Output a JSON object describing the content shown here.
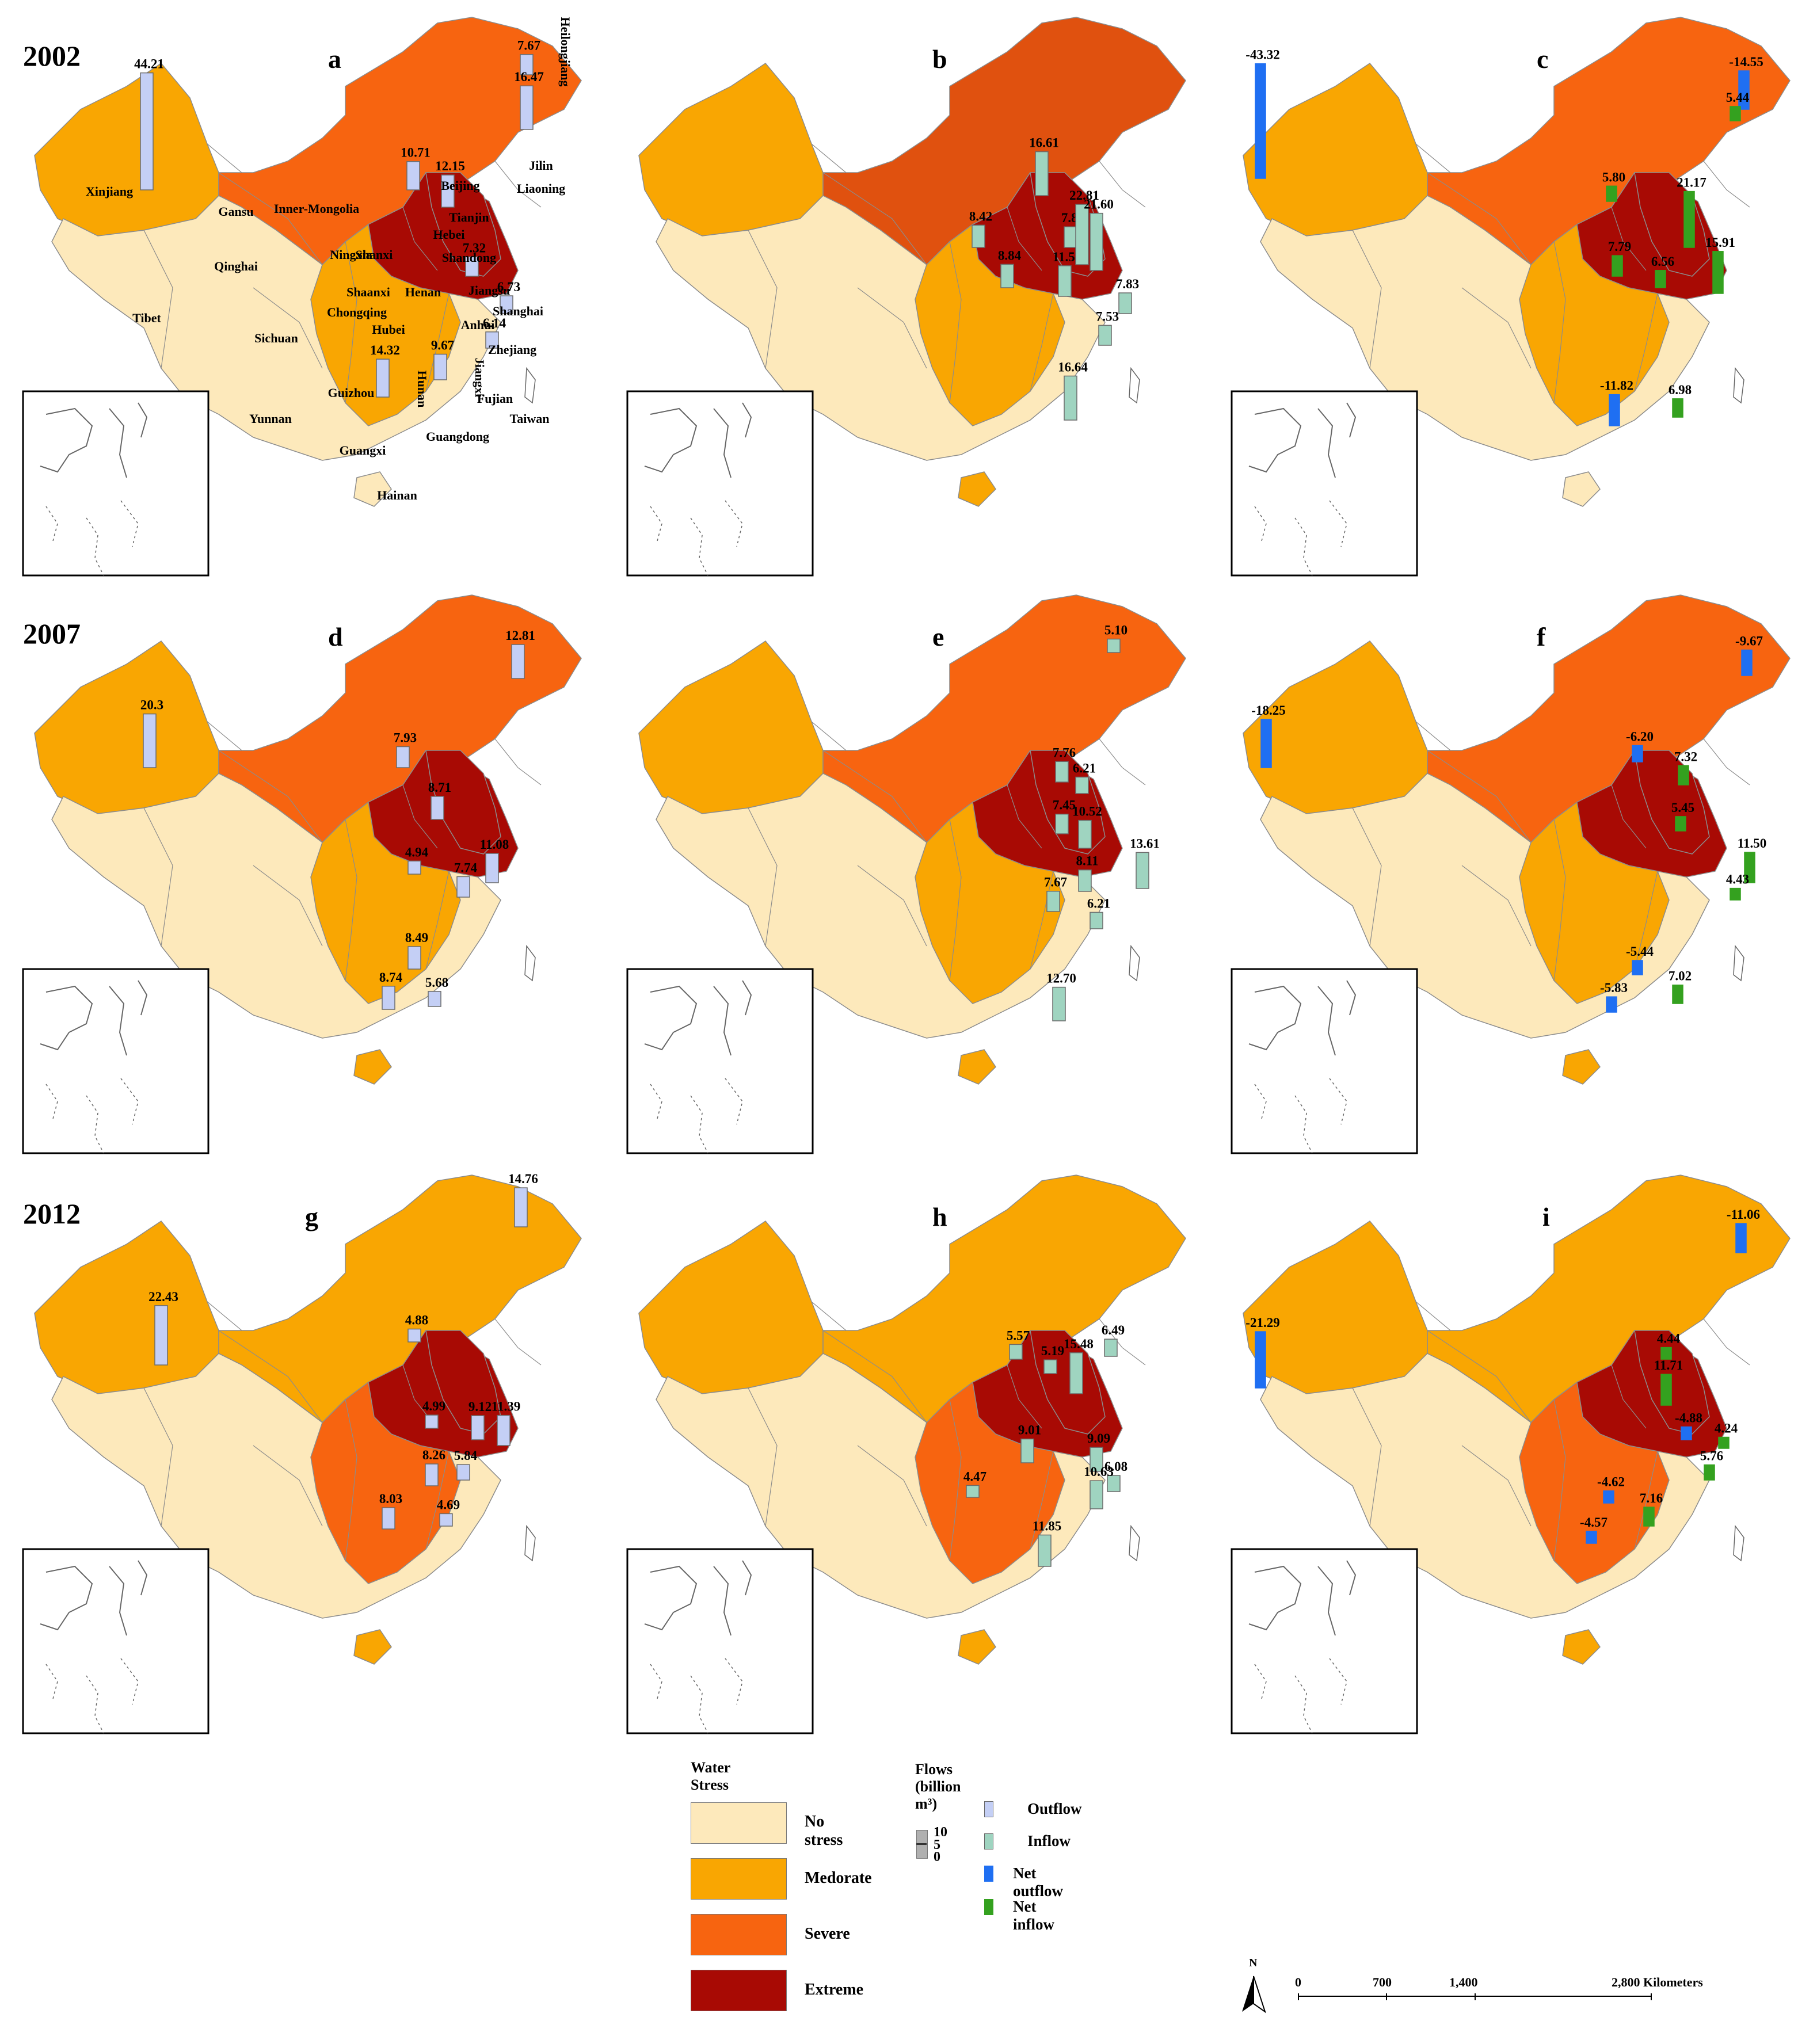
{
  "years": [
    "2002",
    "2007",
    "2012"
  ],
  "panel_letters": [
    "a",
    "b",
    "c",
    "d",
    "e",
    "f",
    "g",
    "h",
    "i"
  ],
  "colors": {
    "no_stress": "#fde9bb",
    "moderate": "#f9a602",
    "severe": "#f76410",
    "severe_2002b": "#e0510f",
    "extreme": "#a80a04",
    "outflow": "#c4cff5",
    "inflow": "#9fd4c0",
    "net_outflow": "#1f6ff2",
    "net_inflow": "#34a11f",
    "border": "#8c8c8c"
  },
  "province_labels": [
    "Heilongjiang",
    "Jilin",
    "Liaoning",
    "Beijing",
    "Tianjin",
    "Hebei",
    "Shandong",
    "Jiangsu",
    "Shanghai",
    "Zhejiang",
    "Fujian",
    "Taiwan",
    "Guangdong",
    "Hainan",
    "Guangxi",
    "Jiangxi",
    "Hunan",
    "Guizhou",
    "Yunnan",
    "Chongqing",
    "Sichuan",
    "Hubei",
    "Anhui",
    "Henan",
    "Shaanxi",
    "Shanxi",
    "Ningxia",
    "Gansu",
    "Inner-Mongolia",
    "Qinghai",
    "Xinjiang",
    "Tibet"
  ],
  "panels": [
    {
      "id": "a",
      "flows": [
        {
          "label": "44.21",
          "type": "outflow",
          "value": 44.21
        },
        {
          "label": "10.71",
          "type": "outflow",
          "value": 10.71
        },
        {
          "label": "12.15",
          "type": "outflow",
          "value": 12.15
        },
        {
          "label": "7.67",
          "type": "outflow",
          "value": 7.67
        },
        {
          "label": "16.47",
          "type": "outflow",
          "value": 16.47
        },
        {
          "label": "7.32",
          "type": "outflow",
          "value": 7.32
        },
        {
          "label": "6.73",
          "type": "outflow",
          "value": 6.73
        },
        {
          "label": "6.14",
          "type": "outflow",
          "value": 6.14
        },
        {
          "label": "14.32",
          "type": "outflow",
          "value": 14.32
        },
        {
          "label": "9.67",
          "type": "outflow",
          "value": 9.67
        }
      ]
    },
    {
      "id": "b",
      "flows": [
        {
          "label": "16.61",
          "type": "inflow",
          "value": 16.61
        },
        {
          "label": "8.42",
          "type": "inflow",
          "value": 8.42
        },
        {
          "label": "8.84",
          "type": "inflow",
          "value": 8.84
        },
        {
          "label": "11.56",
          "type": "inflow",
          "value": 11.56
        },
        {
          "label": "7.80",
          "type": "inflow",
          "value": 7.8
        },
        {
          "label": "22.81",
          "type": "inflow",
          "value": 22.81
        },
        {
          "label": "21.60",
          "type": "inflow",
          "value": 21.6
        },
        {
          "label": "7.83",
          "type": "inflow",
          "value": 7.83
        },
        {
          "label": "7.53",
          "type": "inflow",
          "value": 7.53
        },
        {
          "label": "16.64",
          "type": "inflow",
          "value": 16.64
        }
      ]
    },
    {
      "id": "c",
      "flows": [
        {
          "label": "-43.32",
          "type": "net_outflow",
          "value": -43.32
        },
        {
          "label": "-14.55",
          "type": "net_outflow",
          "value": -14.55
        },
        {
          "label": "5.44",
          "type": "net_inflow",
          "value": 5.44
        },
        {
          "label": "5.80",
          "type": "net_inflow",
          "value": 5.8
        },
        {
          "label": "21.17",
          "type": "net_inflow",
          "value": 21.17
        },
        {
          "label": "7.79",
          "type": "net_inflow",
          "value": 7.79
        },
        {
          "label": "6.56",
          "type": "net_inflow",
          "value": 6.56
        },
        {
          "label": "15.91",
          "type": "net_inflow",
          "value": 15.91
        },
        {
          "label": "-11.82",
          "type": "net_outflow",
          "value": -11.82
        },
        {
          "label": "6.98",
          "type": "net_inflow",
          "value": 6.98
        }
      ]
    },
    {
      "id": "d",
      "flows": [
        {
          "label": "20.3",
          "type": "outflow",
          "value": 20.3
        },
        {
          "label": "12.81",
          "type": "outflow",
          "value": 12.81
        },
        {
          "label": "7.93",
          "type": "outflow",
          "value": 7.93
        },
        {
          "label": "8.71",
          "type": "outflow",
          "value": 8.71
        },
        {
          "label": "4.94",
          "type": "outflow",
          "value": 4.94
        },
        {
          "label": "7.74",
          "type": "outflow",
          "value": 7.74
        },
        {
          "label": "11.08",
          "type": "outflow",
          "value": 11.08
        },
        {
          "label": "8.49",
          "type": "outflow",
          "value": 8.49
        },
        {
          "label": "8.74",
          "type": "outflow",
          "value": 8.74
        },
        {
          "label": "5.68",
          "type": "outflow",
          "value": 5.68
        }
      ]
    },
    {
      "id": "e",
      "flows": [
        {
          "label": "5.10",
          "type": "inflow",
          "value": 5.1
        },
        {
          "label": "7.76",
          "type": "inflow",
          "value": 7.76
        },
        {
          "label": "6.21",
          "type": "inflow",
          "value": 6.21
        },
        {
          "label": "7.45",
          "type": "inflow",
          "value": 7.45
        },
        {
          "label": "10.52",
          "type": "inflow",
          "value": 10.52
        },
        {
          "label": "13.61",
          "type": "inflow",
          "value": 13.61
        },
        {
          "label": "7.67",
          "type": "inflow",
          "value": 7.67
        },
        {
          "label": "8.11",
          "type": "inflow",
          "value": 8.11
        },
        {
          "label": "6.21",
          "type": "inflow",
          "value": 6.21
        },
        {
          "label": "12.70",
          "type": "inflow",
          "value": 12.7
        }
      ]
    },
    {
      "id": "f",
      "flows": [
        {
          "label": "-18.25",
          "type": "net_outflow",
          "value": -18.25
        },
        {
          "label": "-9.67",
          "type": "net_outflow",
          "value": -9.67
        },
        {
          "label": "-6.20",
          "type": "net_outflow",
          "value": -6.2
        },
        {
          "label": "7.32",
          "type": "net_inflow",
          "value": 7.32
        },
        {
          "label": "5.45",
          "type": "net_inflow",
          "value": 5.45
        },
        {
          "label": "11.50",
          "type": "net_inflow",
          "value": 11.5
        },
        {
          "label": "4.43",
          "type": "net_inflow",
          "value": 4.43
        },
        {
          "label": "-5.44",
          "type": "net_outflow",
          "value": -5.44
        },
        {
          "label": "-5.83",
          "type": "net_outflow",
          "value": -5.83
        },
        {
          "label": "7.02",
          "type": "net_inflow",
          "value": 7.02
        }
      ]
    },
    {
      "id": "g",
      "flows": [
        {
          "label": "22.43",
          "type": "outflow",
          "value": 22.43
        },
        {
          "label": "14.76",
          "type": "outflow",
          "value": 14.76
        },
        {
          "label": "4.88",
          "type": "outflow",
          "value": 4.88
        },
        {
          "label": "4.99",
          "type": "outflow",
          "value": 4.99
        },
        {
          "label": "9.12",
          "type": "outflow",
          "value": 9.12
        },
        {
          "label": "11.39",
          "type": "outflow",
          "value": 11.39
        },
        {
          "label": "8.26",
          "type": "outflow",
          "value": 8.26
        },
        {
          "label": "5.84",
          "type": "outflow",
          "value": 5.84
        },
        {
          "label": "8.03",
          "type": "outflow",
          "value": 8.03
        },
        {
          "label": "4.69",
          "type": "outflow",
          "value": 4.69
        }
      ]
    },
    {
      "id": "h",
      "flows": [
        {
          "label": "5.57",
          "type": "inflow",
          "value": 5.57
        },
        {
          "label": "5.19",
          "type": "inflow",
          "value": 5.19
        },
        {
          "label": "15.48",
          "type": "inflow",
          "value": 15.48
        },
        {
          "label": "6.49",
          "type": "inflow",
          "value": 6.49
        },
        {
          "label": "9.01",
          "type": "inflow",
          "value": 9.01
        },
        {
          "label": "9.09",
          "type": "inflow",
          "value": 9.09
        },
        {
          "label": "6.08",
          "type": "inflow",
          "value": 6.08
        },
        {
          "label": "10.63",
          "type": "inflow",
          "value": 10.63
        },
        {
          "label": "4.47",
          "type": "inflow",
          "value": 4.47
        },
        {
          "label": "11.85",
          "type": "inflow",
          "value": 11.85
        }
      ]
    },
    {
      "id": "i",
      "flows": [
        {
          "label": "-21.29",
          "type": "net_outflow",
          "value": -21.29
        },
        {
          "label": "-11.06",
          "type": "net_outflow",
          "value": -11.06
        },
        {
          "label": "4.44",
          "type": "net_inflow",
          "value": 4.44
        },
        {
          "label": "11.71",
          "type": "net_inflow",
          "value": 11.71
        },
        {
          "label": "-4.88",
          "type": "net_outflow",
          "value": -4.88
        },
        {
          "label": "4.24",
          "type": "net_inflow",
          "value": 4.24
        },
        {
          "label": "5.76",
          "type": "net_inflow",
          "value": 5.76
        },
        {
          "label": "-4.62",
          "type": "net_outflow",
          "value": -4.62
        },
        {
          "label": "-4.57",
          "type": "net_outflow",
          "value": -4.57
        },
        {
          "label": "7.16",
          "type": "net_inflow",
          "value": 7.16
        }
      ]
    }
  ],
  "legend": {
    "water_stress_title": "Water Stress",
    "classes": [
      "No stress",
      "Medorate",
      "Severe",
      "Extreme"
    ],
    "flows_title": "Flows (billion m³)",
    "flow_scale": [
      "10",
      "5",
      "0"
    ],
    "flow_types": [
      "Outflow",
      "Inflow",
      "Net outflow",
      "Net inflow"
    ]
  },
  "scale_bar": {
    "north": "N",
    "ticks": [
      "0",
      "700",
      "1,400",
      "2,800 Kilometers"
    ]
  }
}
